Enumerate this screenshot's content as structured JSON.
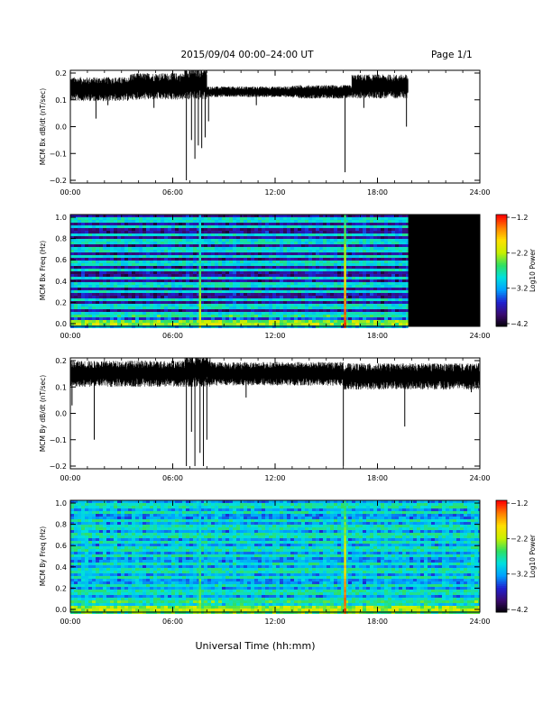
{
  "header": {
    "title": "2015/09/04  00:00–24:00 UT",
    "page": "Page 1/1"
  },
  "xaxis": {
    "label": "Universal Time (hh:mm)",
    "ticks": [
      "00:00",
      "06:00",
      "12:00",
      "18:00",
      "24:00"
    ],
    "range_hours": [
      0,
      24
    ]
  },
  "colors": {
    "trace": "#000000",
    "no_data": "#000000",
    "colormap": [
      "#000000",
      "#3a0a6e",
      "#2020d0",
      "#00a0ff",
      "#00e0e0",
      "#30e060",
      "#c8f000",
      "#ffe000",
      "#ff8000",
      "#ff0000"
    ]
  },
  "chart_data": [
    {
      "type": "line",
      "name": "bx-timeseries",
      "ylabel": "MCM Bx dB/dt (nT/sec)",
      "yticks": [
        "0.2",
        "0.1",
        "0.0",
        "−0.1",
        "−0.2"
      ],
      "ylim": [
        -0.2,
        0.2
      ],
      "xlim": [
        0,
        24
      ],
      "data_end_hour": 19.8,
      "baseline_segments": [
        {
          "from": 0.0,
          "to": 3.5,
          "mid": 0.14,
          "amp": 0.045
        },
        {
          "from": 3.5,
          "to": 6.7,
          "mid": 0.15,
          "amp": 0.05
        },
        {
          "from": 6.7,
          "to": 8.0,
          "mid": 0.16,
          "amp": 0.06
        },
        {
          "from": 8.0,
          "to": 13.0,
          "mid": 0.13,
          "amp": 0.02
        },
        {
          "from": 13.0,
          "to": 16.5,
          "mid": 0.13,
          "amp": 0.025
        },
        {
          "from": 16.5,
          "to": 19.8,
          "mid": 0.15,
          "amp": 0.045
        }
      ],
      "spikes": [
        {
          "x": 1.5,
          "y": 0.03
        },
        {
          "x": 2.2,
          "y": 0.08
        },
        {
          "x": 4.9,
          "y": 0.07
        },
        {
          "x": 6.8,
          "y": -0.2
        },
        {
          "x": 7.1,
          "y": -0.05
        },
        {
          "x": 7.3,
          "y": -0.12
        },
        {
          "x": 7.5,
          "y": -0.07
        },
        {
          "x": 7.7,
          "y": -0.08
        },
        {
          "x": 7.9,
          "y": -0.04
        },
        {
          "x": 8.1,
          "y": 0.02
        },
        {
          "x": 10.9,
          "y": 0.08
        },
        {
          "x": 16.1,
          "y": -0.17
        },
        {
          "x": 17.2,
          "y": 0.07
        },
        {
          "x": 19.7,
          "y": 0.0
        }
      ]
    },
    {
      "type": "heatmap",
      "name": "bx-spectrogram",
      "ylabel": "MCM Bx Freq (Hz)",
      "yticks": [
        "1.0",
        "0.8",
        "0.6",
        "0.4",
        "0.2",
        "0.0"
      ],
      "ylim": [
        0.0,
        1.0
      ],
      "xlim": [
        0,
        24
      ],
      "data_end_hour": 19.8,
      "colorbar": {
        "label": "Log10 Power",
        "ticks": [
          "−1.2",
          "−2.2",
          "−3.2",
          "−4.2"
        ],
        "range": [
          -4.2,
          -1.2
        ]
      },
      "background_level": 0.12,
      "harmonic_bands_hz": [
        0.035,
        0.11,
        0.175,
        0.24,
        0.305,
        0.37,
        0.435,
        0.5,
        0.56,
        0.625,
        0.69,
        0.755,
        0.82,
        0.885,
        0.95
      ],
      "harmonic_level": 0.45,
      "hot_columns": [
        {
          "hour": 7.6,
          "level": 0.7
        },
        {
          "hour": 16.1,
          "level": 0.95
        }
      ]
    },
    {
      "type": "line",
      "name": "by-timeseries",
      "ylabel": "MCM By dB/dt (nT/sec)",
      "yticks": [
        "0.2",
        "0.1",
        "0.0",
        "−0.1",
        "−0.2"
      ],
      "ylim": [
        -0.2,
        0.2
      ],
      "xlim": [
        0,
        24
      ],
      "data_end_hour": 24,
      "baseline_segments": [
        {
          "from": 0.0,
          "to": 6.7,
          "mid": 0.15,
          "amp": 0.05
        },
        {
          "from": 6.7,
          "to": 8.2,
          "mid": 0.16,
          "amp": 0.06
        },
        {
          "from": 8.2,
          "to": 16.0,
          "mid": 0.15,
          "amp": 0.045
        },
        {
          "from": 16.0,
          "to": 24.0,
          "mid": 0.14,
          "amp": 0.05
        }
      ],
      "spikes": [
        {
          "x": 0.1,
          "y": 0.03
        },
        {
          "x": 1.4,
          "y": -0.1
        },
        {
          "x": 6.8,
          "y": -0.2
        },
        {
          "x": 7.1,
          "y": -0.07
        },
        {
          "x": 7.3,
          "y": -0.2
        },
        {
          "x": 7.6,
          "y": -0.15
        },
        {
          "x": 7.8,
          "y": -0.2
        },
        {
          "x": 8.0,
          "y": -0.1
        },
        {
          "x": 10.3,
          "y": 0.06
        },
        {
          "x": 16.0,
          "y": -0.2
        },
        {
          "x": 19.6,
          "y": -0.05
        },
        {
          "x": 23.5,
          "y": 0.08
        }
      ]
    },
    {
      "type": "heatmap",
      "name": "by-spectrogram",
      "ylabel": "MCM By Freq (Hz)",
      "yticks": [
        "1.0",
        "0.8",
        "0.6",
        "0.4",
        "0.2",
        "0.0"
      ],
      "ylim": [
        0.0,
        1.0
      ],
      "xlim": [
        0,
        24
      ],
      "data_end_hour": 24,
      "colorbar": {
        "label": "Log10 Power",
        "ticks": [
          "−1.2",
          "−2.2",
          "−3.2",
          "−4.2"
        ],
        "range": [
          -4.2,
          -1.2
        ]
      },
      "background_level": 0.3,
      "harmonic_bands_hz": [
        0.035,
        0.11,
        0.175,
        0.24,
        0.305,
        0.37,
        0.435,
        0.5,
        0.56,
        0.625,
        0.69,
        0.755,
        0.82,
        0.885,
        0.95
      ],
      "harmonic_level": 0.48,
      "hot_columns": [
        {
          "hour": 7.6,
          "level": 0.65
        },
        {
          "hour": 16.1,
          "level": 0.95
        }
      ]
    }
  ]
}
